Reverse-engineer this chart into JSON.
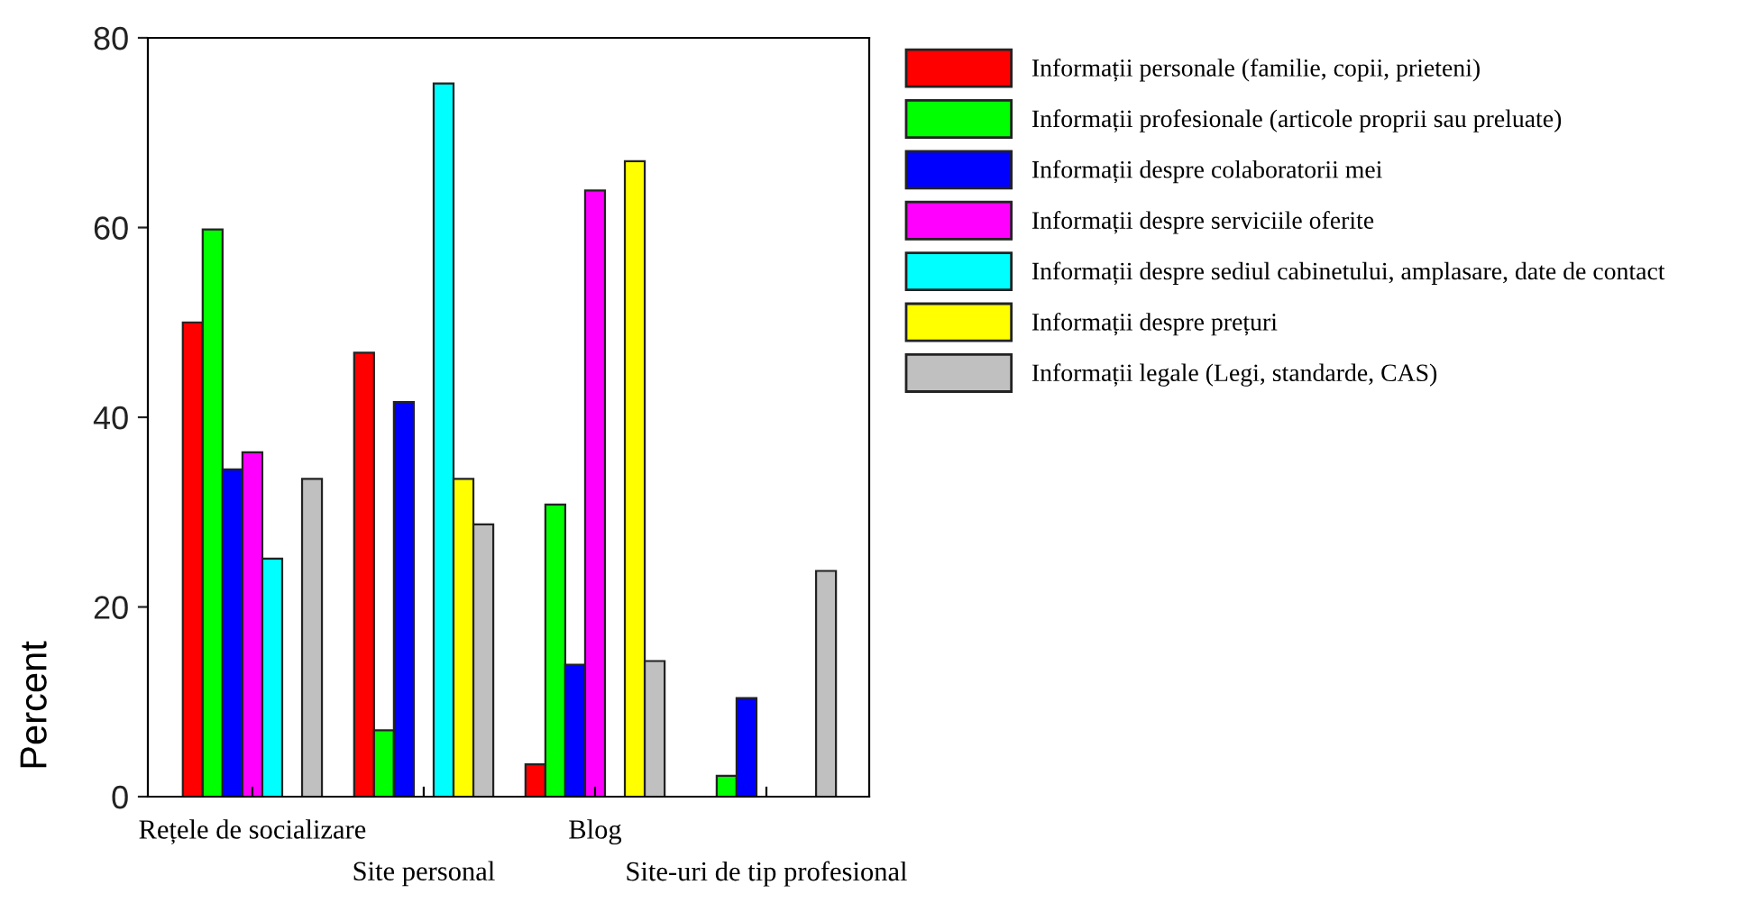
{
  "chart_data": {
    "type": "bar",
    "ylabel": "Percent",
    "categories": [
      "Rețele de socializare",
      "Site personal",
      "Blog",
      "Site-uri de tip profesional"
    ],
    "series": [
      {
        "name": "Informații personale (familie, copii, prieteni)",
        "color": "#ff0000",
        "values": [
          50.0,
          46.8,
          3.4,
          null
        ]
      },
      {
        "name": "Informații profesionale (articole proprii sau preluate)",
        "color": "#00ff00",
        "values": [
          59.8,
          7.0,
          30.8,
          2.2
        ]
      },
      {
        "name": "Informații despre colaboratorii mei",
        "color": "#0000ff",
        "values": [
          34.5,
          41.6,
          13.9,
          10.4
        ]
      },
      {
        "name": "Informații despre serviciile oferite",
        "color": "#ff00ff",
        "values": [
          36.3,
          null,
          63.9,
          null
        ]
      },
      {
        "name": "Informații despre sediul cabinetului, amplasare, date de contact",
        "color": "#00ffff",
        "values": [
          25.1,
          75.2,
          null,
          null
        ]
      },
      {
        "name": "Informații despre prețuri",
        "color": "#ffff00",
        "values": [
          null,
          33.5,
          67.0,
          null
        ]
      },
      {
        "name": "Informații legale (Legi, standarde, CAS)",
        "color": "#c0c0c0",
        "values": [
          33.5,
          28.7,
          14.3,
          23.8
        ]
      }
    ],
    "ylim": [
      0,
      80
    ],
    "yticks": [
      0,
      20,
      40,
      60,
      80
    ],
    "grid": false,
    "legend": "right"
  }
}
